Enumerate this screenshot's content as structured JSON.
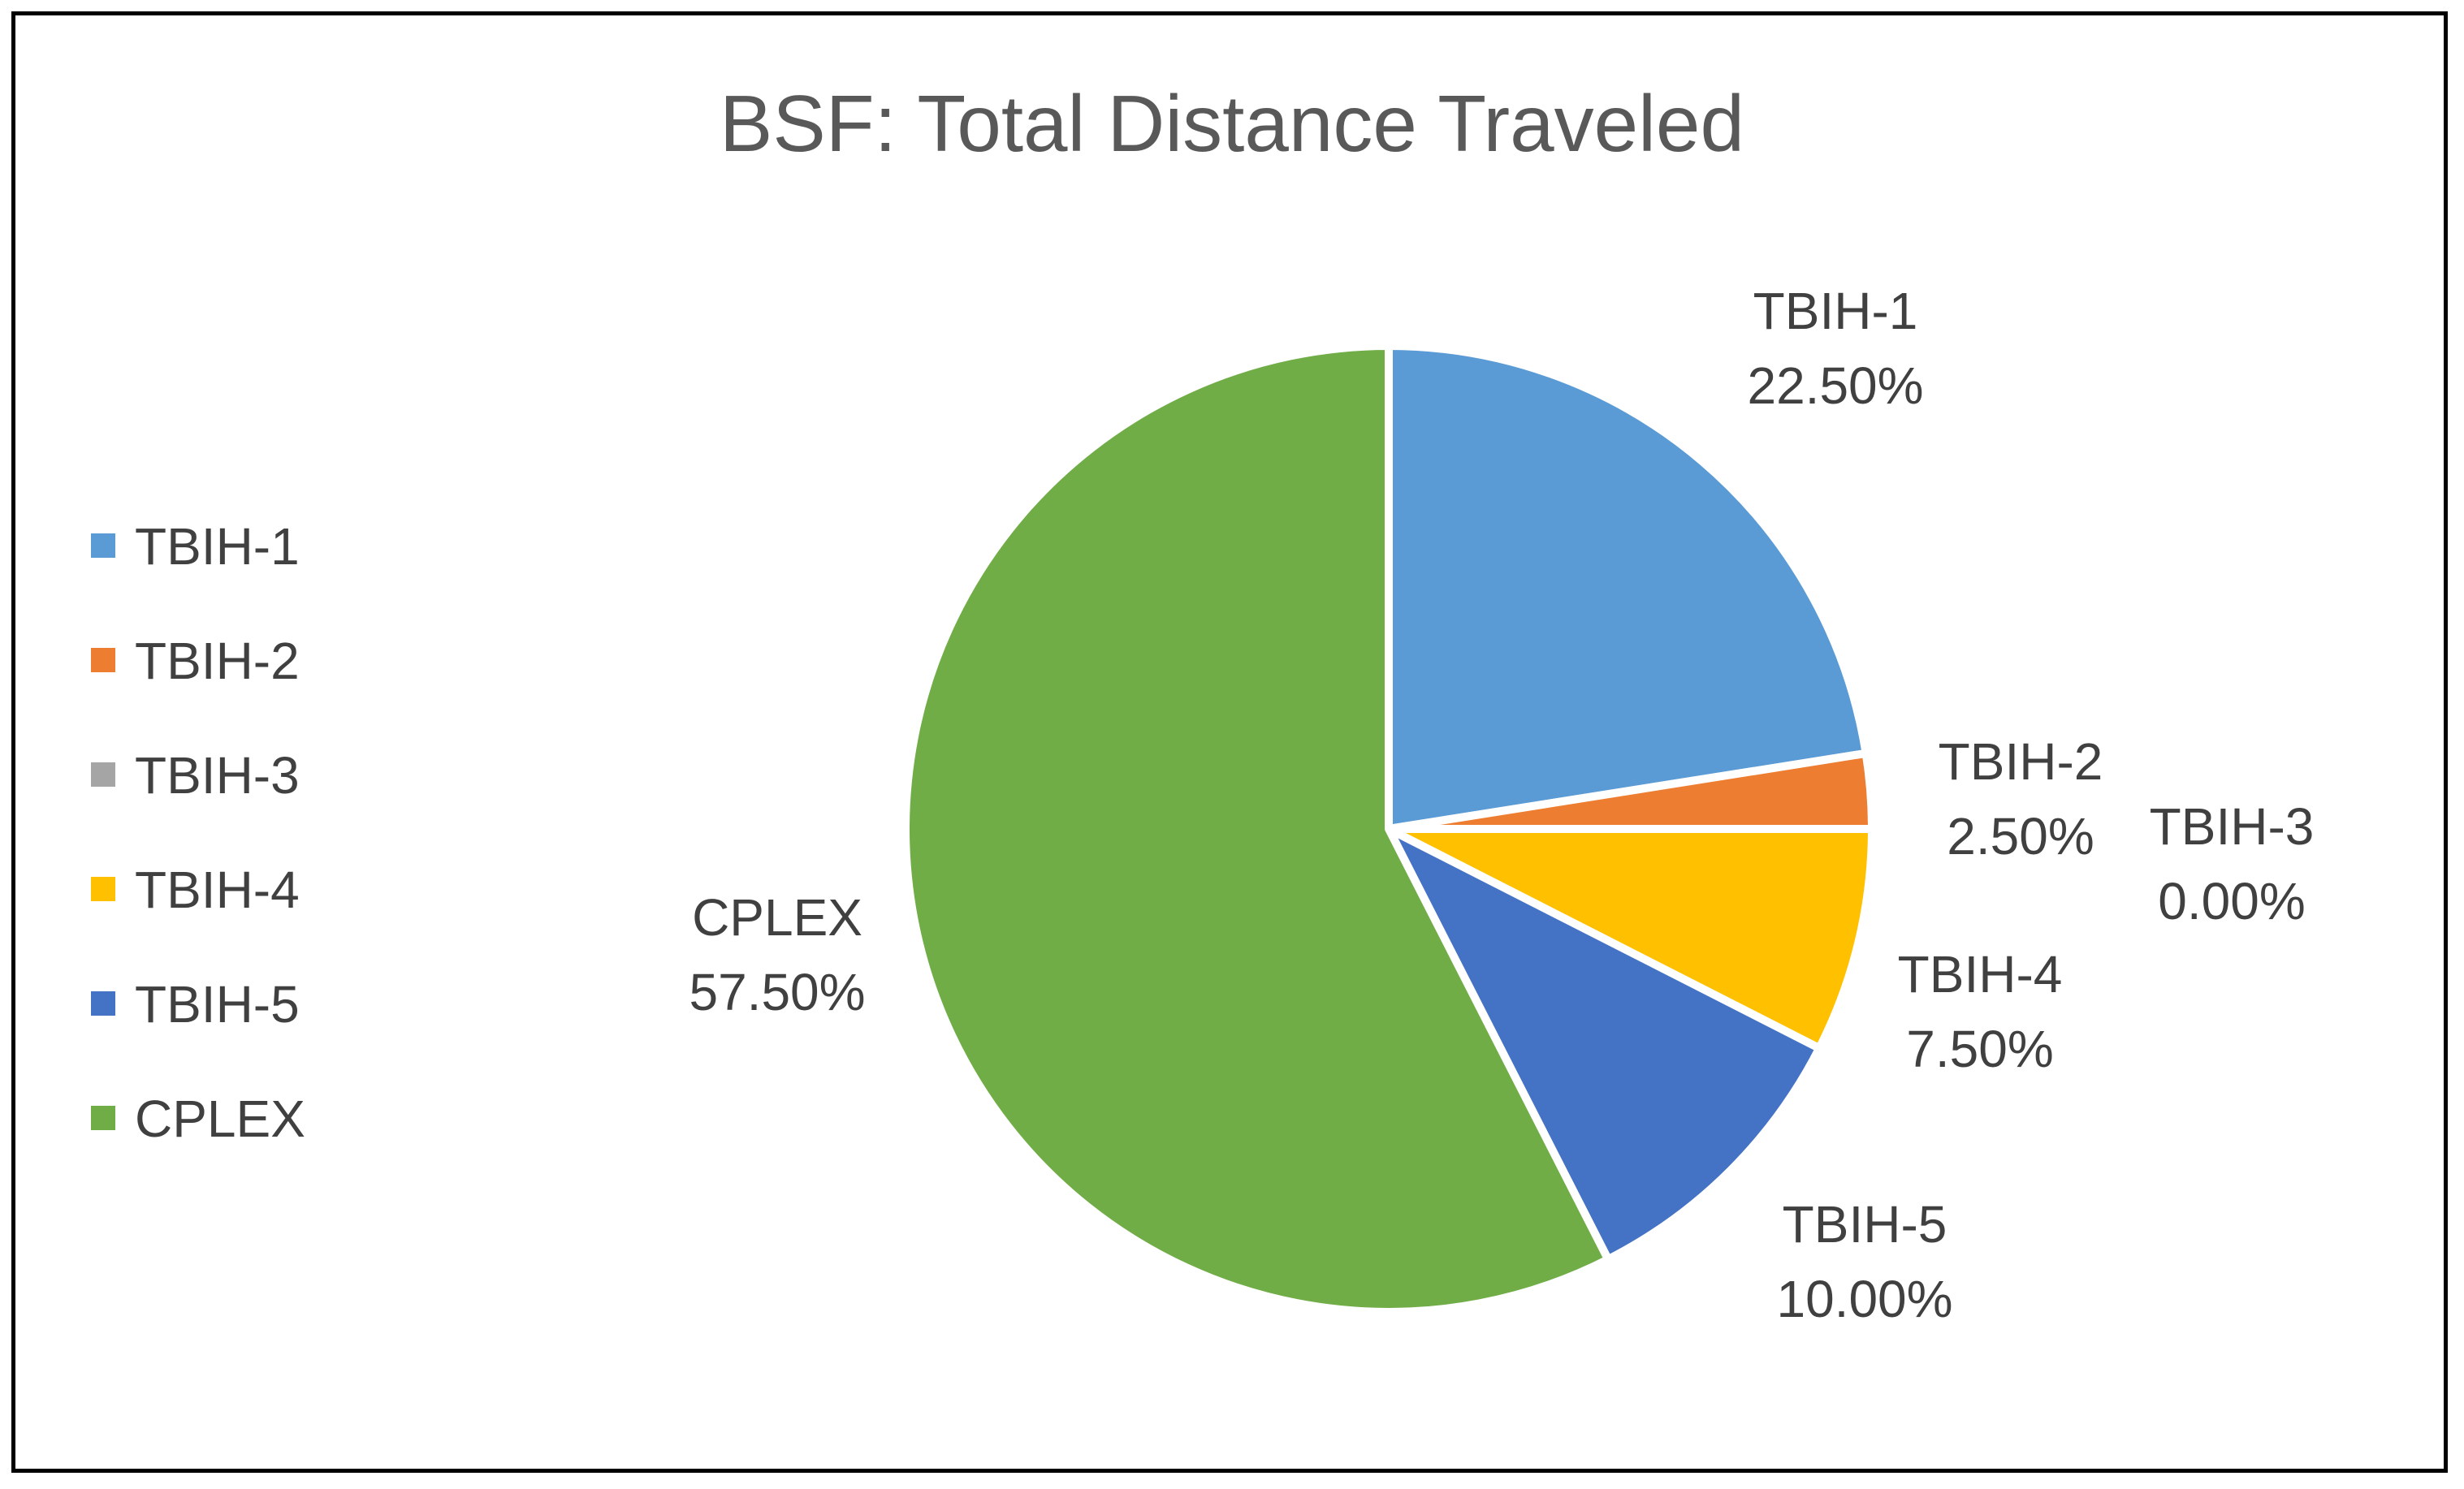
{
  "chart_data": {
    "type": "pie",
    "title": "BSF: Total Distance Traveled",
    "start_angle_deg": 0,
    "direction": "clockwise",
    "legend_position": "left",
    "slices": [
      {
        "name": "TBIH-1",
        "value": 22.5,
        "label": "22.50%",
        "color": "#5B9BD5"
      },
      {
        "name": "TBIH-2",
        "value": 2.5,
        "label": "2.50%",
        "color": "#ED7D31"
      },
      {
        "name": "TBIH-3",
        "value": 0.0,
        "label": "0.00%",
        "color": "#A5A5A5"
      },
      {
        "name": "TBIH-4",
        "value": 7.5,
        "label": "7.50%",
        "color": "#FFC000"
      },
      {
        "name": "TBIH-5",
        "value": 10.0,
        "label": "10.00%",
        "color": "#4472C4"
      },
      {
        "name": "CPLEX",
        "value": 57.5,
        "label": "57.50%",
        "color": "#70AD47"
      }
    ]
  }
}
